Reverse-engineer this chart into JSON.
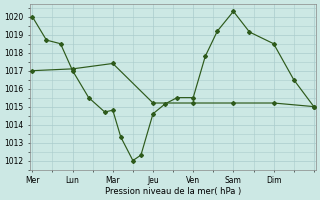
{
  "xlabel": "Pression niveau de la mer( hPa )",
  "background_color": "#cce8e4",
  "grid_color": "#aacccc",
  "line_color": "#2d5a1b",
  "x_ticks": [
    0,
    1,
    2,
    3,
    4,
    5,
    6,
    7
  ],
  "x_labels": [
    "Mer",
    "Lun",
    "Mar",
    "Jeu",
    "Ven",
    "Sam",
    "Dim",
    ""
  ],
  "xlim": [
    -0.05,
    7.05
  ],
  "ylim": [
    1011.5,
    1020.7
  ],
  "yticks": [
    1012,
    1013,
    1014,
    1015,
    1016,
    1017,
    1018,
    1019,
    1020
  ],
  "series1_x": [
    0,
    0.35,
    0.7,
    1.0,
    1.4,
    1.8,
    2.0,
    2.2,
    2.5,
    2.7,
    3.0,
    3.3,
    3.6,
    4.0,
    4.3,
    4.6,
    5.0,
    5.4,
    6.0,
    6.5,
    7.0
  ],
  "series1_y": [
    1020.0,
    1018.7,
    1018.5,
    1017.0,
    1015.5,
    1014.7,
    1014.8,
    1013.3,
    1012.0,
    1012.3,
    1014.6,
    1015.15,
    1015.5,
    1015.5,
    1017.8,
    1019.2,
    1020.3,
    1019.15,
    1018.5,
    1016.5,
    1015.0
  ],
  "series2_x": [
    0,
    1.0,
    2.0,
    3.0,
    4.0,
    5.0,
    6.0,
    7.0
  ],
  "series2_y": [
    1017.0,
    1017.1,
    1017.4,
    1015.2,
    1015.2,
    1015.2,
    1015.2,
    1015.0
  ]
}
